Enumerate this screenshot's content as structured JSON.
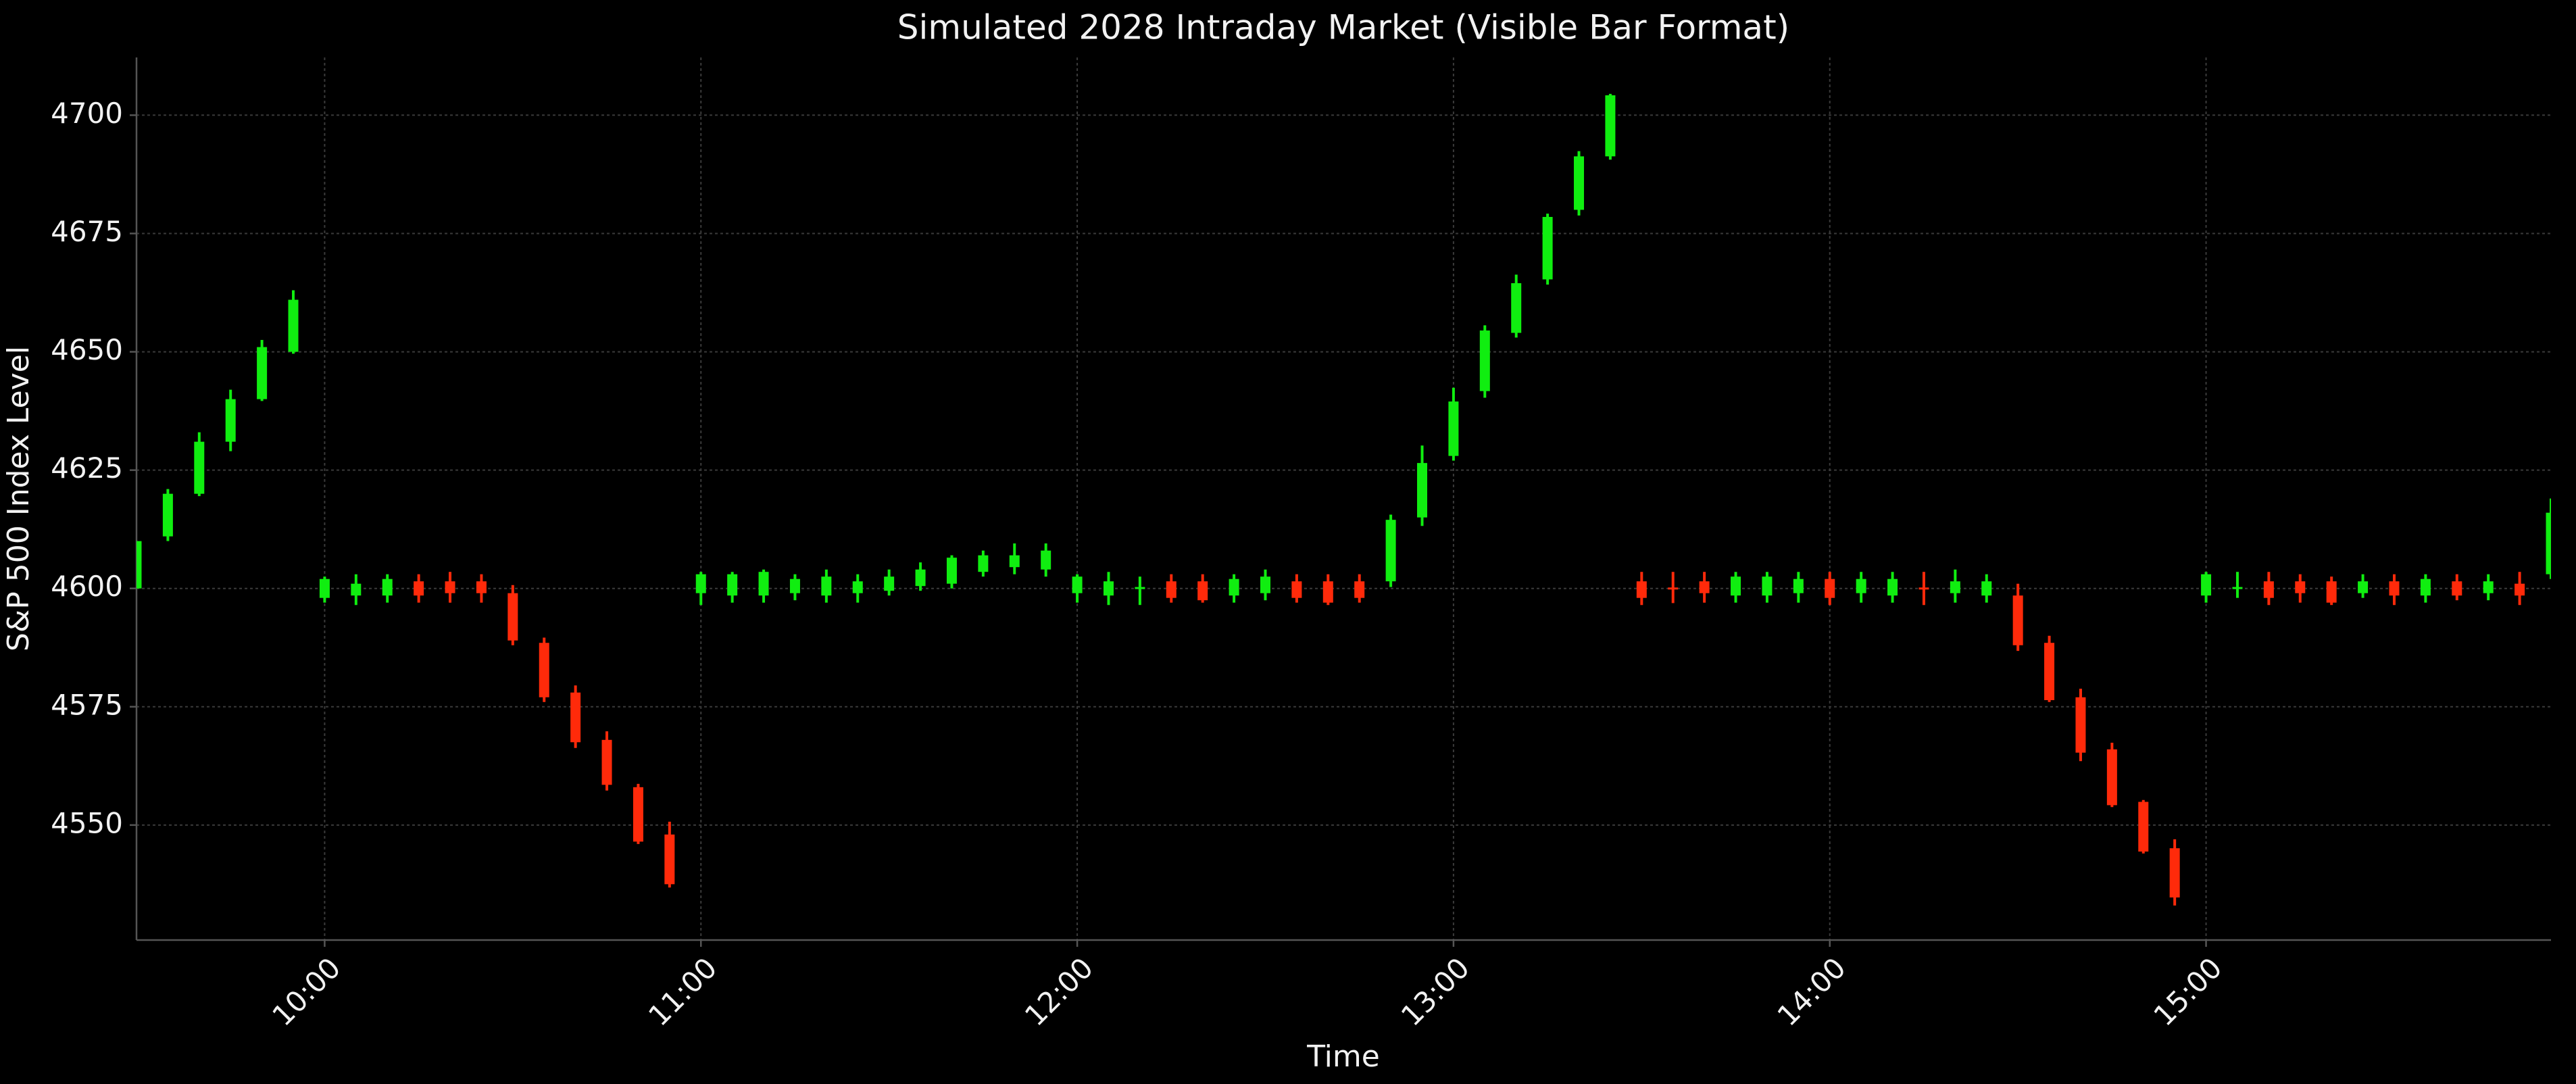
{
  "chart_data": {
    "type": "candlestick",
    "title": "Simulated 2028 Intraday Market (Visible Bar Format)",
    "xlabel": "Time",
    "ylabel": "S&P 500 Index Level",
    "up_color": "#10ee10",
    "down_color": "#ff2a0a",
    "grid": true,
    "x": [
      "09:30",
      "09:35",
      "09:40",
      "09:45",
      "09:50",
      "09:55",
      "10:00",
      "10:05",
      "10:10",
      "10:15",
      "10:20",
      "10:25",
      "10:30",
      "10:35",
      "10:40",
      "10:45",
      "10:50",
      "10:55",
      "11:00",
      "11:05",
      "11:10",
      "11:15",
      "11:20",
      "11:25",
      "11:30",
      "11:35",
      "11:40",
      "11:45",
      "11:50",
      "11:55",
      "12:00",
      "12:05",
      "12:10",
      "12:15",
      "12:20",
      "12:25",
      "12:30",
      "12:35",
      "12:40",
      "12:45",
      "12:50",
      "12:55",
      "13:00",
      "13:05",
      "13:10",
      "13:15",
      "13:20",
      "13:25",
      "13:30",
      "13:35",
      "13:40",
      "13:45",
      "13:50",
      "13:55",
      "14:00",
      "14:05",
      "14:10",
      "14:15",
      "14:20",
      "14:25",
      "14:30",
      "14:35",
      "14:40",
      "14:45",
      "14:50",
      "14:55",
      "15:00",
      "15:05",
      "15:10",
      "15:15",
      "15:20",
      "15:25",
      "15:30",
      "15:35",
      "15:40",
      "15:45",
      "15:50",
      "15:55"
    ],
    "open": [
      4600,
      4611,
      4620,
      4631,
      4640,
      4650,
      4598,
      4598.5,
      4598.5,
      4601.5,
      4601.5,
      4601.5,
      4599,
      4588.5,
      4578,
      4568,
      4558,
      4548,
      4599,
      4598.5,
      4598.5,
      4599,
      4598.5,
      4599,
      4599.5,
      4600.5,
      4601,
      4603.5,
      4604.5,
      4604,
      4599,
      4598.5,
      4600,
      4601.5,
      4601.5,
      4598.5,
      4599,
      4601.5,
      4601.5,
      4601.5,
      4601.5,
      4615,
      4628,
      4641.7,
      4654,
      4665.3,
      4680,
      4691.3,
      4601.5,
      4600.2,
      4601.5,
      4598.5,
      4598.5,
      4599,
      4602,
      4599,
      4598.5,
      4600.2,
      4599,
      4598.5,
      4598.5,
      4588.5,
      4577,
      4566,
      4554.9,
      4545.1,
      4598.5,
      4600,
      4601.5,
      4601.5,
      4601.5,
      4599,
      4601.5,
      4598.5,
      4601.5,
      4599,
      4601,
      4603
    ],
    "high": [
      4610,
      4621,
      4633,
      4642,
      4652.5,
      4663,
      4602.5,
      4603,
      4603,
      4603,
      4603.5,
      4603,
      4600.7,
      4589.6,
      4579.5,
      4569.8,
      4558.7,
      4550.7,
      4603.5,
      4603.5,
      4604,
      4603,
      4604,
      4603,
      4604,
      4605.5,
      4607,
      4608,
      4609.5,
      4609.5,
      4603,
      4603.5,
      4602.5,
      4603,
      4603,
      4603,
      4604,
      4603,
      4603,
      4603,
      4615.6,
      4630.2,
      4642.4,
      4655.6,
      4666.3,
      4679.2,
      4692.4,
      4704.5,
      4603.5,
      4603.5,
      4603.5,
      4603.5,
      4603.5,
      4603.5,
      4603.5,
      4603.5,
      4603.5,
      4603.5,
      4604,
      4603,
      4601,
      4590,
      4578.8,
      4567.4,
      4555.3,
      4547,
      4603.5,
      4603.5,
      4603.5,
      4603,
      4602.5,
      4603,
      4603,
      4603,
      4603,
      4603,
      4603.5,
      4619
    ],
    "low": [
      4600,
      4610,
      4619.5,
      4629,
      4639.6,
      4649.6,
      4597,
      4596.5,
      4597,
      4597,
      4597,
      4597,
      4588,
      4576,
      4566.3,
      4557.3,
      4546,
      4536.8,
      4596.5,
      4597,
      4597,
      4597.5,
      4597,
      4597,
      4598.5,
      4599.5,
      4600,
      4602.5,
      4603,
      4602.5,
      4597,
      4596.5,
      4596.5,
      4597,
      4597,
      4597,
      4597.5,
      4597,
      4596.5,
      4597,
      4600.3,
      4613.2,
      4627,
      4640.3,
      4653,
      4664.2,
      4678.8,
      4690.6,
      4596.5,
      4596.9,
      4597,
      4597,
      4597,
      4597,
      4596.5,
      4597,
      4597,
      4596.5,
      4597,
      4597,
      4586.8,
      4576,
      4563.5,
      4553.8,
      4544,
      4533,
      4597,
      4598,
      4596.5,
      4597,
      4596.5,
      4598,
      4596.5,
      4597,
      4597.5,
      4597.5,
      4596.5,
      4602
    ],
    "close": [
      4610,
      4620,
      4631,
      4640,
      4651,
      4661,
      4602,
      4601,
      4602,
      4598.5,
      4599,
      4599,
      4589,
      4577,
      4567.5,
      4558.5,
      4546.5,
      4537.5,
      4603,
      4603,
      4603.5,
      4602,
      4602.5,
      4601.5,
      4602.5,
      4604,
      4606.5,
      4607,
      4607,
      4608,
      4602.5,
      4601.5,
      4600.3,
      4598,
      4597.5,
      4602,
      4602.5,
      4598,
      4597,
      4598,
      4614.5,
      4626.5,
      4639.5,
      4654.5,
      4664.5,
      4678.5,
      4691.3,
      4704.2,
      4598,
      4600,
      4599,
      4602.5,
      4602.5,
      4602,
      4598,
      4602,
      4602,
      4600,
      4601.5,
      4601.5,
      4588,
      4576.4,
      4565.3,
      4554.2,
      4544.4,
      4534.7,
      4603,
      4600.3,
      4598,
      4599,
      4597,
      4601.5,
      4598.5,
      4602,
      4598.5,
      4601.5,
      4598.5,
      4616
    ],
    "xlim": [
      "09:30",
      "15:55"
    ],
    "xticks": [
      "10:00",
      "11:00",
      "12:00",
      "13:00",
      "14:00",
      "15:00"
    ],
    "ylim": [
      4525.7,
      4712.2
    ],
    "yticks": [
      4550,
      4575,
      4600,
      4625,
      4650,
      4675,
      4700
    ]
  }
}
